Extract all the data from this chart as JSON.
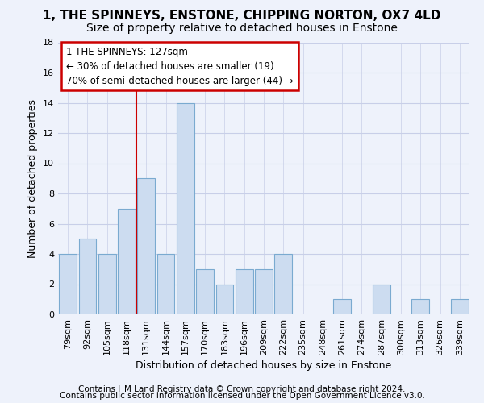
{
  "title1": "1, THE SPINNEYS, ENSTONE, CHIPPING NORTON, OX7 4LD",
  "title2": "Size of property relative to detached houses in Enstone",
  "xlabel": "Distribution of detached houses by size in Enstone",
  "ylabel": "Number of detached properties",
  "categories": [
    "79sqm",
    "92sqm",
    "105sqm",
    "118sqm",
    "131sqm",
    "144sqm",
    "157sqm",
    "170sqm",
    "183sqm",
    "196sqm",
    "209sqm",
    "222sqm",
    "235sqm",
    "248sqm",
    "261sqm",
    "274sqm",
    "287sqm",
    "300sqm",
    "313sqm",
    "326sqm",
    "339sqm"
  ],
  "values": [
    4,
    5,
    4,
    7,
    9,
    4,
    14,
    3,
    2,
    3,
    3,
    4,
    0,
    0,
    1,
    0,
    2,
    0,
    1,
    0,
    1
  ],
  "bar_color": "#ccdcf0",
  "bar_edge_color": "#7aaad0",
  "background_color": "#eef2fb",
  "grid_color": "#c8cfe8",
  "annotation_text": "1 THE SPINNEYS: 127sqm\n← 30% of detached houses are smaller (19)\n70% of semi-detached houses are larger (44) →",
  "annotation_box_color": "#ffffff",
  "annotation_border_color": "#cc0000",
  "vline_color": "#cc0000",
  "vline_x_index": 3.5,
  "ylim": [
    0,
    18
  ],
  "yticks": [
    0,
    2,
    4,
    6,
    8,
    10,
    12,
    14,
    16,
    18
  ],
  "footer1": "Contains HM Land Registry data © Crown copyright and database right 2024.",
  "footer2": "Contains public sector information licensed under the Open Government Licence v3.0.",
  "title1_fontsize": 11,
  "title2_fontsize": 10,
  "xlabel_fontsize": 9,
  "ylabel_fontsize": 9,
  "tick_fontsize": 8,
  "annotation_fontsize": 8.5,
  "footer_fontsize": 7.5
}
